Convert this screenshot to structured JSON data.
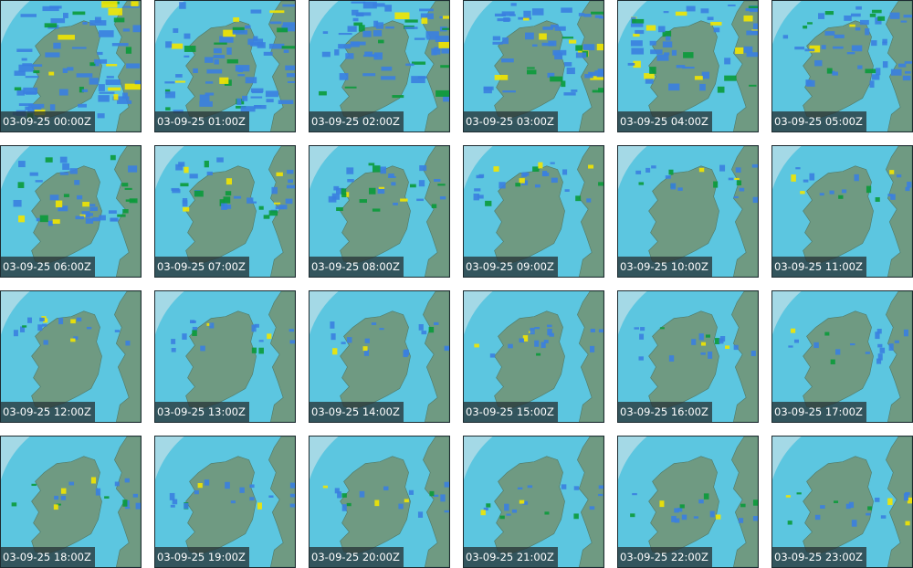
{
  "frames": [
    {
      "label": "03-09-25 00:00Z"
    },
    {
      "label": "03-09-25 01:00Z"
    },
    {
      "label": "03-09-25 02:00Z"
    },
    {
      "label": "03-09-25 03:00Z"
    },
    {
      "label": "03-09-25 04:00Z"
    },
    {
      "label": "03-09-25 05:00Z"
    },
    {
      "label": "03-09-25 06:00Z"
    },
    {
      "label": "03-09-25 07:00Z"
    },
    {
      "label": "03-09-25 08:00Z"
    },
    {
      "label": "03-09-25 09:00Z"
    },
    {
      "label": "03-09-25 10:00Z"
    },
    {
      "label": "03-09-25 11:00Z"
    },
    {
      "label": "03-09-25 12:00Z"
    },
    {
      "label": "03-09-25 13:00Z"
    },
    {
      "label": "03-09-25 14:00Z"
    },
    {
      "label": "03-09-25 15:00Z"
    },
    {
      "label": "03-09-25 16:00Z"
    },
    {
      "label": "03-09-25 17:00Z"
    },
    {
      "label": "03-09-25 18:00Z"
    },
    {
      "label": "03-09-25 19:00Z"
    },
    {
      "label": "03-09-25 20:00Z"
    },
    {
      "label": "03-09-25 21:00Z"
    },
    {
      "label": "03-09-25 22:00Z"
    },
    {
      "label": "03-09-25 23:00Z"
    }
  ],
  "colors": {
    "out_of_range": "#a4d9e6",
    "radar_coverage": "#5cc6e0",
    "land": "#6f9a82",
    "rain_light": "#3a7fe0",
    "rain_moderate": "#0a9a3a",
    "rain_heavy": "#f2e600",
    "label_background": "#283438",
    "label_text": "#ffffff"
  }
}
